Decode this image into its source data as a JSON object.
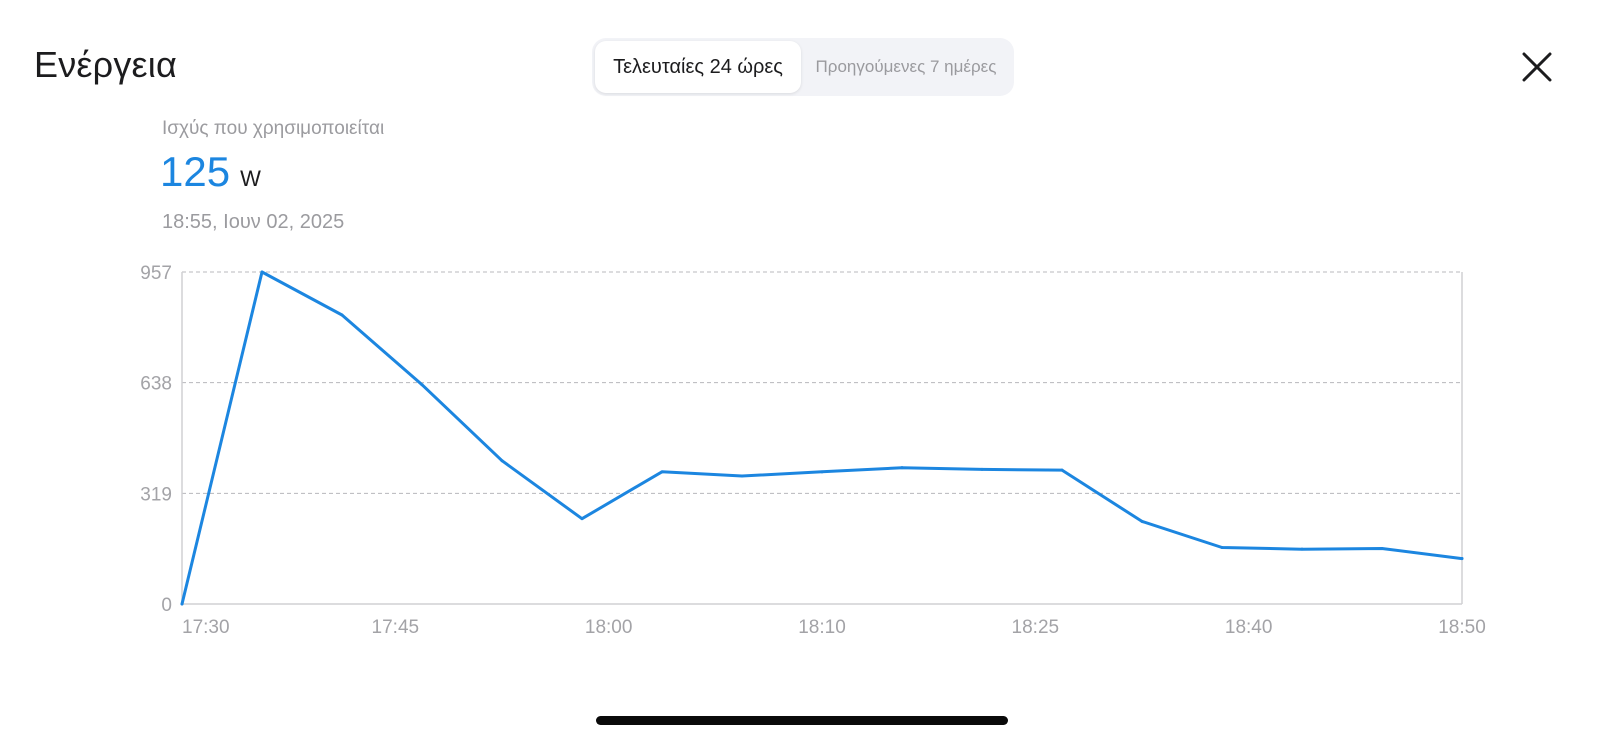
{
  "header": {
    "title": "Ενέργεια",
    "tabs": [
      {
        "label": "Τελευταίες 24 ώρες",
        "active": true
      },
      {
        "label": "Προηγούμενες 7 ημέρες",
        "active": false
      }
    ],
    "close_icon": "close-icon"
  },
  "metric": {
    "label": "Ισχύς που χρησιμοποιείται",
    "value": "125",
    "unit": "W",
    "timestamp": "18:55, Ιουν 02, 2025"
  },
  "colors": {
    "accent": "#1c86e0",
    "grid": "#b8b8bc",
    "axis": "#d0d0d4",
    "tick_text": "#a3a3a7"
  },
  "chart_data": {
    "type": "line",
    "title": "",
    "xlabel": "",
    "ylabel": "",
    "ylim": [
      0,
      957
    ],
    "yticks": [
      0,
      319,
      638,
      957
    ],
    "grid": true,
    "x_tick_labels": [
      "17:30",
      "17:45",
      "18:00",
      "18:10",
      "18:25",
      "18:40",
      "18:50"
    ],
    "series": [
      {
        "color": "#1c86e0",
        "values": [
          0,
          957,
          833,
          632,
          413,
          246,
          381,
          369,
          381,
          393,
          388,
          386,
          238,
          163,
          158,
          160,
          131
        ]
      }
    ]
  }
}
